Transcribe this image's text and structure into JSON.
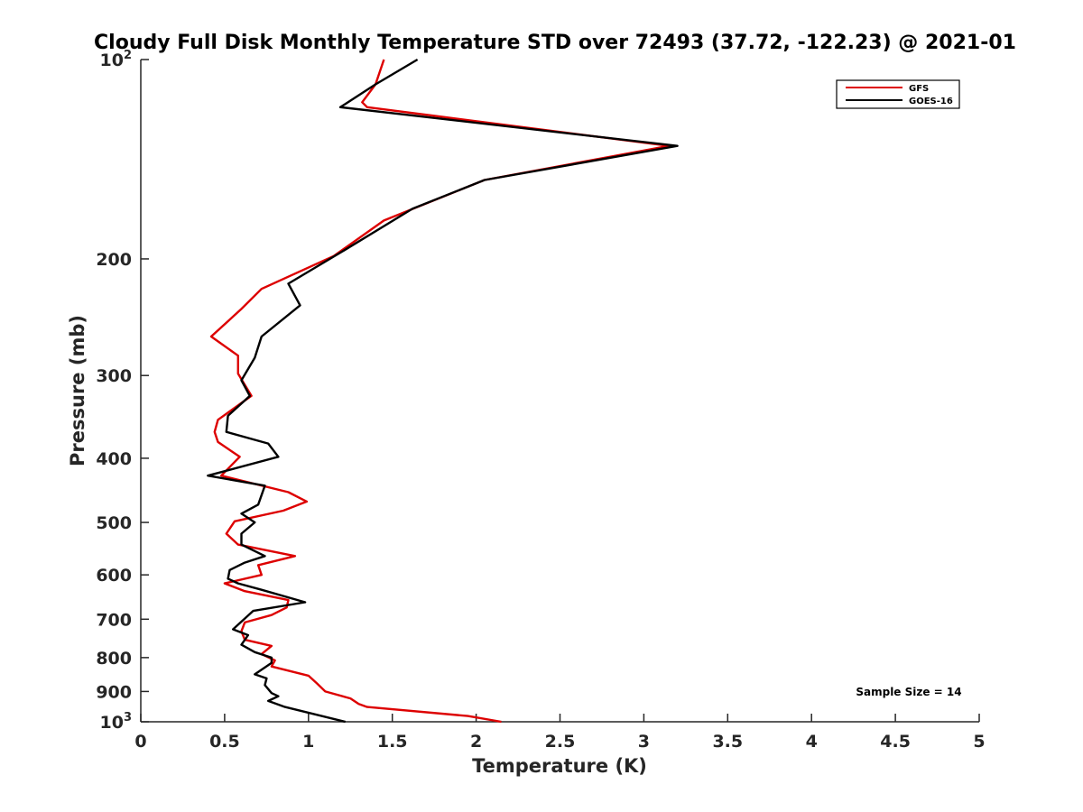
{
  "chart_data": {
    "type": "line",
    "title": "Cloudy Full Disk Monthly Temperature STD over 72493 (37.72, -122.23) @ 2021-01",
    "xlabel": "Temperature (K)",
    "ylabel": "Pressure (mb)",
    "xlim": [
      0,
      5
    ],
    "ylim": [
      100,
      1000
    ],
    "y_scale": "log",
    "y_reversed": true,
    "x_ticks": [
      "0",
      "0.5",
      "1",
      "1.5",
      "2",
      "2.5",
      "3",
      "3.5",
      "4",
      "4.5",
      "5"
    ],
    "x_tick_values": [
      0,
      0.5,
      1,
      1.5,
      2,
      2.5,
      3,
      3.5,
      4,
      4.5,
      5
    ],
    "y_ticks": [
      {
        "value": 100,
        "base": "10",
        "exp": "2"
      },
      {
        "value": 200,
        "label": "200"
      },
      {
        "value": 300,
        "label": "300"
      },
      {
        "value": 400,
        "label": "400"
      },
      {
        "value": 500,
        "label": "500"
      },
      {
        "value": 600,
        "label": "600"
      },
      {
        "value": 700,
        "label": "700"
      },
      {
        "value": 800,
        "label": "800"
      },
      {
        "value": 900,
        "label": "900"
      },
      {
        "value": 1000,
        "base": "10",
        "exp": "3"
      }
    ],
    "grid": false,
    "legend_position": "top-right",
    "annotation": "Sample Size = 14",
    "series": [
      {
        "name": "GFS",
        "color": "#dd0000",
        "points": [
          [
            1.45,
            100
          ],
          [
            1.4,
            109
          ],
          [
            1.32,
            116
          ],
          [
            1.35,
            118
          ],
          [
            3.15,
            135
          ],
          [
            2.05,
            152
          ],
          [
            1.45,
            175
          ],
          [
            1.15,
            198
          ],
          [
            0.72,
            222
          ],
          [
            0.6,
            238
          ],
          [
            0.42,
            262
          ],
          [
            0.58,
            280
          ],
          [
            0.58,
            298
          ],
          [
            0.66,
            322
          ],
          [
            0.6,
            330
          ],
          [
            0.46,
            350
          ],
          [
            0.44,
            365
          ],
          [
            0.46,
            378
          ],
          [
            0.59,
            398
          ],
          [
            0.48,
            425
          ],
          [
            0.88,
            450
          ],
          [
            0.99,
            465
          ],
          [
            0.85,
            480
          ],
          [
            0.56,
            498
          ],
          [
            0.51,
            520
          ],
          [
            0.58,
            540
          ],
          [
            0.92,
            562
          ],
          [
            0.7,
            580
          ],
          [
            0.72,
            600
          ],
          [
            0.5,
            618
          ],
          [
            0.62,
            635
          ],
          [
            0.88,
            655
          ],
          [
            0.87,
            672
          ],
          [
            0.78,
            690
          ],
          [
            0.62,
            708
          ],
          [
            0.6,
            730
          ],
          [
            0.62,
            752
          ],
          [
            0.78,
            768
          ],
          [
            0.72,
            790
          ],
          [
            0.8,
            808
          ],
          [
            0.78,
            825
          ],
          [
            1.0,
            852
          ],
          [
            1.05,
            875
          ],
          [
            1.1,
            900
          ],
          [
            1.25,
            922
          ],
          [
            1.3,
            940
          ],
          [
            1.35,
            950
          ],
          [
            1.95,
            980
          ],
          [
            2.15,
            1000
          ]
        ]
      },
      {
        "name": "GOES-16",
        "color": "#000000",
        "points": [
          [
            1.65,
            100
          ],
          [
            1.4,
            109
          ],
          [
            1.19,
            118
          ],
          [
            3.2,
            135
          ],
          [
            2.05,
            152
          ],
          [
            1.62,
            168
          ],
          [
            1.2,
            195
          ],
          [
            0.88,
            218
          ],
          [
            0.95,
            235
          ],
          [
            0.72,
            262
          ],
          [
            0.68,
            282
          ],
          [
            0.6,
            305
          ],
          [
            0.65,
            322
          ],
          [
            0.52,
            345
          ],
          [
            0.51,
            365
          ],
          [
            0.76,
            380
          ],
          [
            0.82,
            398
          ],
          [
            0.4,
            425
          ],
          [
            0.74,
            440
          ],
          [
            0.7,
            470
          ],
          [
            0.6,
            485
          ],
          [
            0.68,
            500
          ],
          [
            0.6,
            520
          ],
          [
            0.6,
            540
          ],
          [
            0.74,
            562
          ],
          [
            0.62,
            575
          ],
          [
            0.53,
            590
          ],
          [
            0.52,
            608
          ],
          [
            0.58,
            618
          ],
          [
            0.72,
            632
          ],
          [
            0.98,
            660
          ],
          [
            0.67,
            680
          ],
          [
            0.55,
            725
          ],
          [
            0.64,
            740
          ],
          [
            0.6,
            765
          ],
          [
            0.68,
            785
          ],
          [
            0.78,
            800
          ],
          [
            0.78,
            815
          ],
          [
            0.68,
            848
          ],
          [
            0.75,
            860
          ],
          [
            0.74,
            880
          ],
          [
            0.78,
            905
          ],
          [
            0.82,
            915
          ],
          [
            0.76,
            930
          ],
          [
            0.86,
            950
          ],
          [
            1.22,
            1000
          ]
        ]
      }
    ]
  }
}
